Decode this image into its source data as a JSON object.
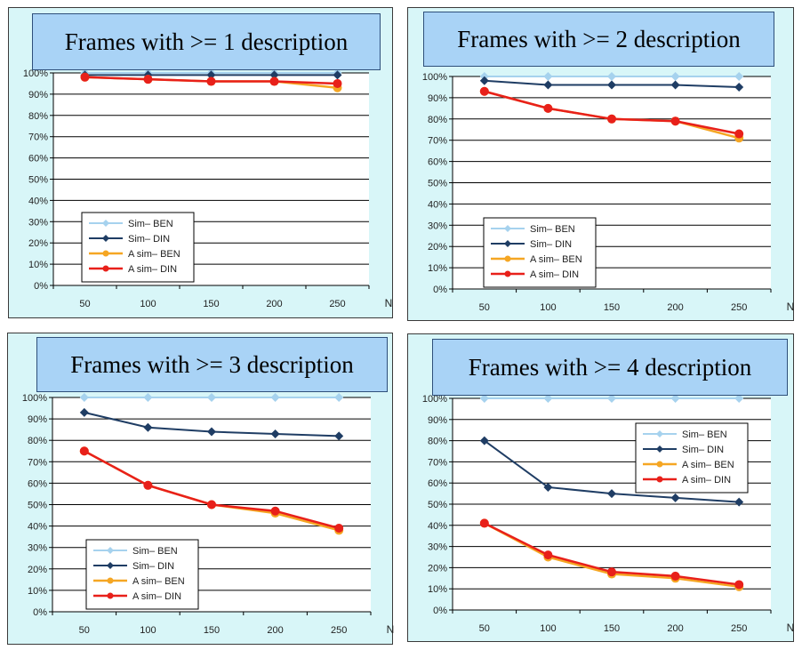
{
  "series_style": [
    {
      "name": "Sim– BEN",
      "color": "#a6d2ee",
      "marker": "diamond"
    },
    {
      "name": "Sim– DIN",
      "color": "#1f3d64",
      "marker": "diamond"
    },
    {
      "name": "A sim– BEN",
      "color": "#f5a623",
      "marker": "circle"
    },
    {
      "name": "A sim– DIN",
      "color": "#e8201a",
      "marker": "circle"
    }
  ],
  "chart_data": [
    {
      "type": "line",
      "title": "Frames with >= 1 description",
      "xlabel": "N",
      "x": [
        50,
        100,
        150,
        200,
        250
      ],
      "y_ticks": [
        "0%",
        "10%",
        "20%",
        "30%",
        "40%",
        "50%",
        "60%",
        "70%",
        "80%",
        "90%",
        "100%"
      ],
      "ylim": [
        0,
        100
      ],
      "legend": "bottom-left",
      "series": [
        {
          "name": "Sim– BEN",
          "values": [
            100,
            100,
            100,
            100,
            100
          ]
        },
        {
          "name": "Sim– DIN",
          "values": [
            99,
            99,
            99,
            99,
            99
          ]
        },
        {
          "name": "A sim– BEN",
          "values": [
            98,
            97,
            96,
            96,
            93
          ]
        },
        {
          "name": "A sim– DIN",
          "values": [
            98,
            97,
            96,
            96,
            95
          ]
        }
      ]
    },
    {
      "type": "line",
      "title": "Frames with >= 2 description",
      "xlabel": "N",
      "x": [
        50,
        100,
        150,
        200,
        250
      ],
      "y_ticks": [
        "0%",
        "10%",
        "20%",
        "30%",
        "40%",
        "50%",
        "60%",
        "70%",
        "80%",
        "90%",
        "100%"
      ],
      "ylim": [
        0,
        100
      ],
      "legend": "bottom-left",
      "series": [
        {
          "name": "Sim– BEN",
          "values": [
            100,
            100,
            100,
            100,
            100
          ]
        },
        {
          "name": "Sim– DIN",
          "values": [
            98,
            96,
            96,
            96,
            95
          ]
        },
        {
          "name": "A sim– BEN",
          "values": [
            93,
            85,
            80,
            79,
            71
          ]
        },
        {
          "name": "A sim– DIN",
          "values": [
            93,
            85,
            80,
            79,
            73
          ]
        }
      ]
    },
    {
      "type": "line",
      "title": "Frames with >= 3 description",
      "xlabel": "N",
      "x": [
        50,
        100,
        150,
        200,
        250
      ],
      "y_ticks": [
        "0%",
        "10%",
        "20%",
        "30%",
        "40%",
        "50%",
        "60%",
        "70%",
        "80%",
        "90%",
        "100%"
      ],
      "ylim": [
        0,
        100
      ],
      "legend": "bottom-left",
      "series": [
        {
          "name": "Sim– BEN",
          "values": [
            100,
            100,
            100,
            100,
            100
          ]
        },
        {
          "name": "Sim– DIN",
          "values": [
            93,
            86,
            84,
            83,
            82
          ]
        },
        {
          "name": "A sim– BEN",
          "values": [
            75,
            59,
            50,
            46,
            38
          ]
        },
        {
          "name": "A sim– DIN",
          "values": [
            75,
            59,
            50,
            47,
            39
          ]
        }
      ]
    },
    {
      "type": "line",
      "title": "Frames with >= 4 description",
      "xlabel": "N",
      "x": [
        50,
        100,
        150,
        200,
        250
      ],
      "y_ticks": [
        "0%",
        "10%",
        "20%",
        "30%",
        "40%",
        "50%",
        "60%",
        "70%",
        "80%",
        "90%",
        "100%"
      ],
      "ylim": [
        0,
        100
      ],
      "legend": "top-right",
      "series": [
        {
          "name": "Sim– BEN",
          "values": [
            100,
            100,
            100,
            100,
            100
          ]
        },
        {
          "name": "Sim– DIN",
          "values": [
            80,
            58,
            55,
            53,
            51
          ]
        },
        {
          "name": "A sim– BEN",
          "values": [
            41,
            25,
            17,
            15,
            11
          ]
        },
        {
          "name": "A sim– DIN",
          "values": [
            41,
            26,
            18,
            16,
            12
          ]
        }
      ]
    }
  ]
}
